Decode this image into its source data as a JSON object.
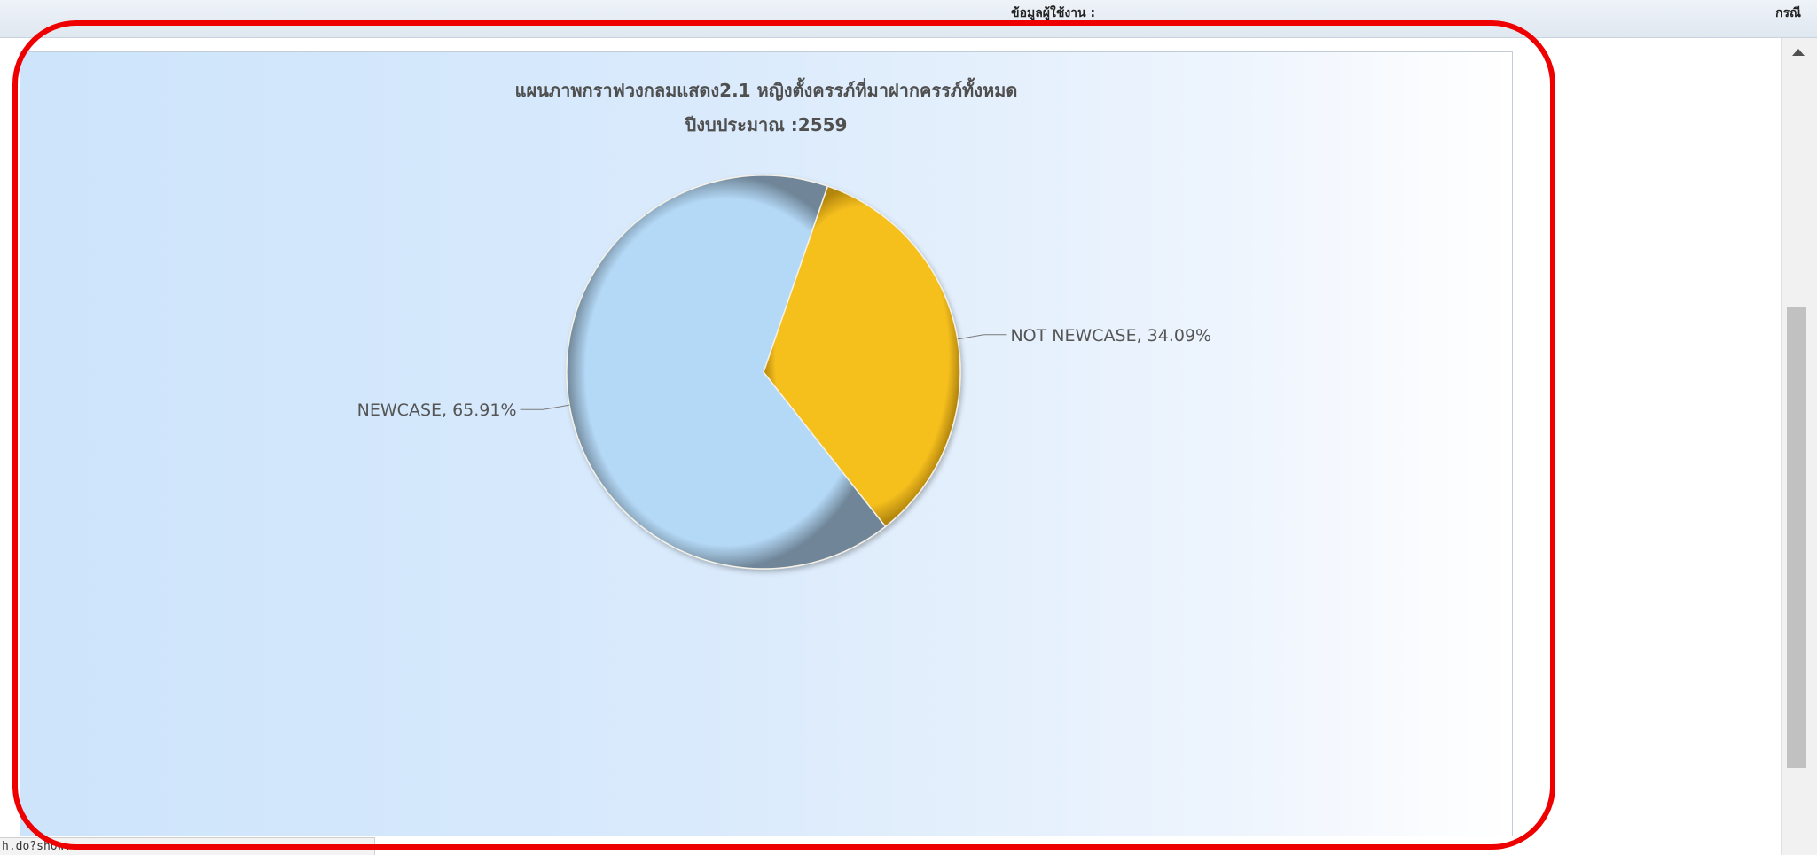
{
  "header": {
    "user_info_label": "ข้อมูลผู้ใช้งาน :",
    "right_label": "กรณี"
  },
  "status_bar": {
    "url_text": "h.do?show..."
  },
  "chart_data": {
    "type": "pie",
    "title": "แผนภาพกราฟวงกลมแสดง2.1 หญิงตั้งครรภ์ที่มาฝากครรภ์ทั้งหมด",
    "subtitle": "ปีงบประมาณ :2559",
    "slices": [
      {
        "label": "NOT NEWCASE",
        "value": 34.09,
        "display": "NOT NEWCASE, 34.09%",
        "color": "#f5bf1e",
        "shade": "#b3860d"
      },
      {
        "label": "NEWCASE",
        "value": 65.91,
        "display": "NEWCASE, 65.91%",
        "color": "#b4d9f7",
        "shade": "#6f8597"
      }
    ]
  },
  "colors": {
    "highlight_frame": "#ee0000",
    "panel_left": "#cde4fb",
    "panel_right": "#ffffff"
  }
}
